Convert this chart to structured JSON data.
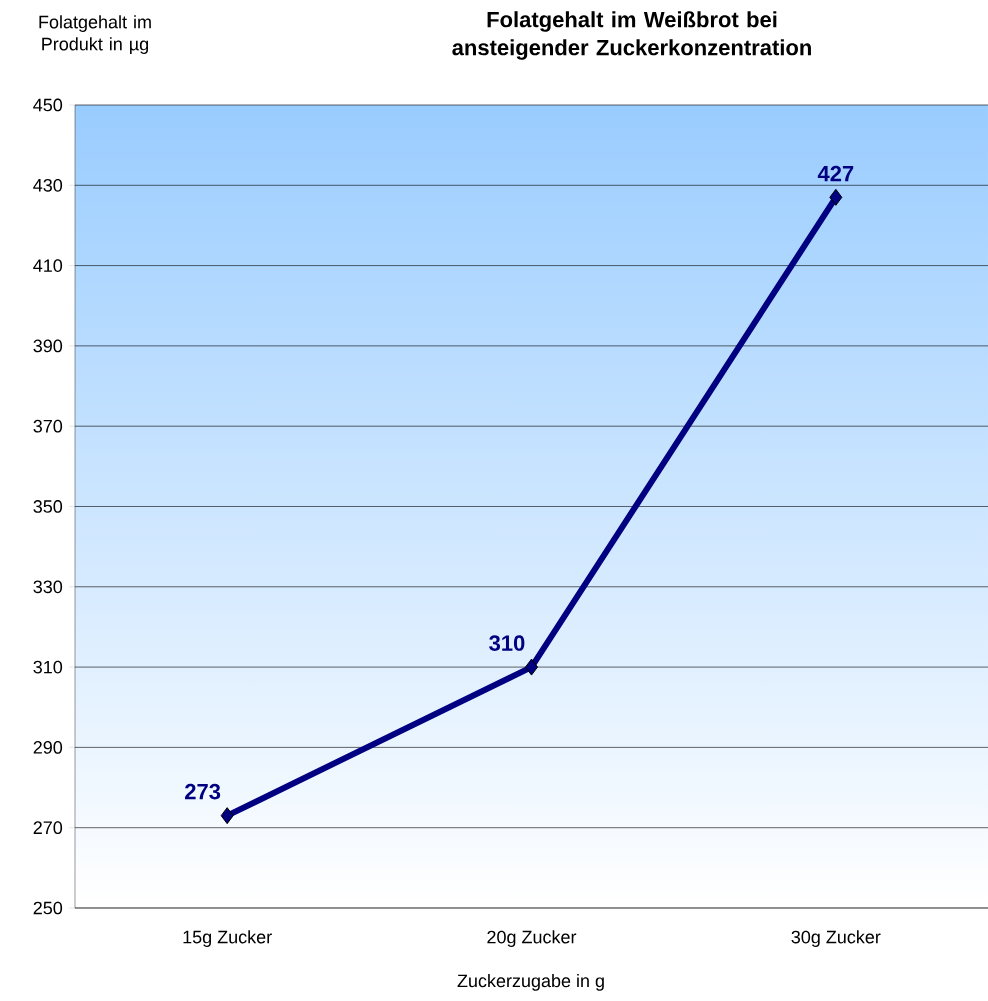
{
  "chart_data": {
    "type": "line",
    "title": "Folatgehalt im Weißbrot bei ansteigender Zuckerkonzentration",
    "xlabel": "Zuckerzugabe in g",
    "ylabel": "Folatgehalt im Produkt in µg",
    "categories": [
      "15g Zucker",
      "20g Zucker",
      "30g Zucker"
    ],
    "values": [
      273,
      310,
      427
    ],
    "color": "#000080",
    "ylim": [
      250,
      450
    ],
    "yticks": [
      250,
      270,
      290,
      310,
      330,
      350,
      370,
      390,
      410,
      430,
      450
    ],
    "grid": "y",
    "marker": "diamond",
    "line_style": "solid",
    "data_labels": true
  }
}
